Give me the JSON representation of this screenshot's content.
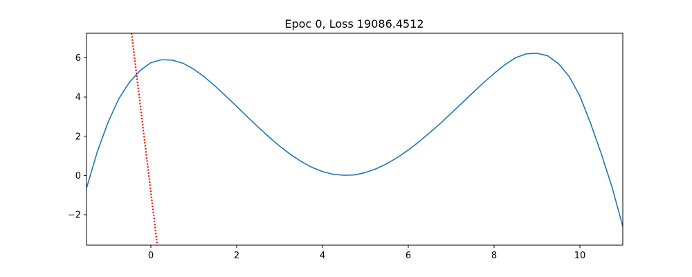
{
  "chart_data": {
    "type": "line",
    "title": "Epoc 0, Loss 19086.4512",
    "xlabel": "",
    "ylabel": "",
    "xlim": [
      -1.5,
      11.0
    ],
    "ylim": [
      -3.55,
      7.25
    ],
    "grid": false,
    "x_ticks": [
      0,
      2,
      4,
      6,
      8,
      10
    ],
    "x_tick_labels": [
      "0",
      "2",
      "4",
      "6",
      "8",
      "10"
    ],
    "y_ticks": [
      -2,
      0,
      2,
      4,
      6
    ],
    "y_tick_labels": [
      "−2",
      "0",
      "2",
      "4",
      "6"
    ],
    "series": [
      {
        "color": "#1f77b4",
        "style": "solid",
        "x": [
          -1.5,
          -1.25,
          -1.0,
          -0.75,
          -0.5,
          -0.25,
          0.0,
          0.25,
          0.5,
          0.75,
          1.0,
          1.25,
          1.5,
          1.75,
          2.0,
          2.25,
          2.5,
          2.75,
          3.0,
          3.25,
          3.5,
          3.75,
          4.0,
          4.25,
          4.5,
          4.75,
          5.0,
          5.25,
          5.5,
          5.75,
          6.0,
          6.25,
          6.5,
          6.75,
          7.0,
          7.25,
          7.5,
          7.75,
          8.0,
          8.25,
          8.5,
          8.75,
          9.0,
          9.25,
          9.5,
          9.75,
          10.0,
          10.25,
          10.5,
          10.75,
          11.0
        ],
        "y": [
          -0.65,
          1.2,
          2.7,
          3.9,
          4.75,
          5.35,
          5.75,
          5.9,
          5.88,
          5.72,
          5.42,
          5.02,
          4.55,
          4.05,
          3.52,
          2.99,
          2.47,
          1.97,
          1.5,
          1.08,
          0.72,
          0.42,
          0.2,
          0.06,
          0.01,
          0.03,
          0.15,
          0.34,
          0.6,
          0.92,
          1.3,
          1.72,
          2.18,
          2.66,
          3.17,
          3.69,
          4.21,
          4.72,
          5.2,
          5.64,
          6.0,
          6.2,
          6.23,
          6.1,
          5.7,
          5.05,
          4.05,
          2.65,
          1.1,
          -0.6,
          -2.6
        ]
      },
      {
        "color": "#ff0000",
        "style": "dotted",
        "x": [
          -0.45,
          0.15
        ],
        "y": [
          7.25,
          -3.55
        ]
      }
    ]
  }
}
